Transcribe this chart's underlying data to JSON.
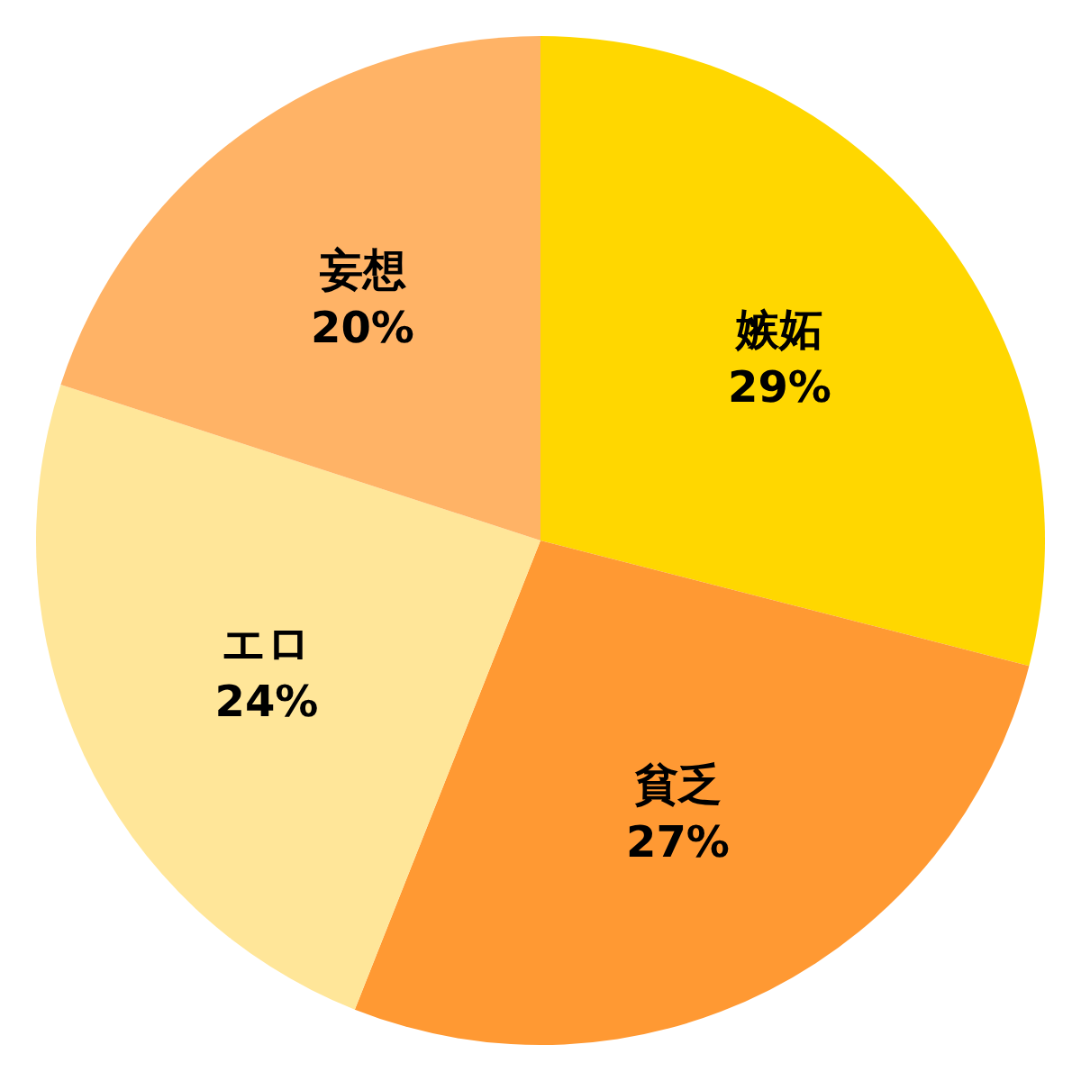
{
  "chart_data": {
    "type": "pie",
    "categories": [
      "嫉妬",
      "貧乏",
      "エロ",
      "妄想"
    ],
    "values": [
      29,
      27,
      24,
      20
    ],
    "colors": [
      "#ffd700",
      "#ff9933",
      "#ffe699",
      "#ffb366"
    ],
    "value_labels": [
      "29%",
      "27%",
      "24%",
      "20%"
    ]
  }
}
